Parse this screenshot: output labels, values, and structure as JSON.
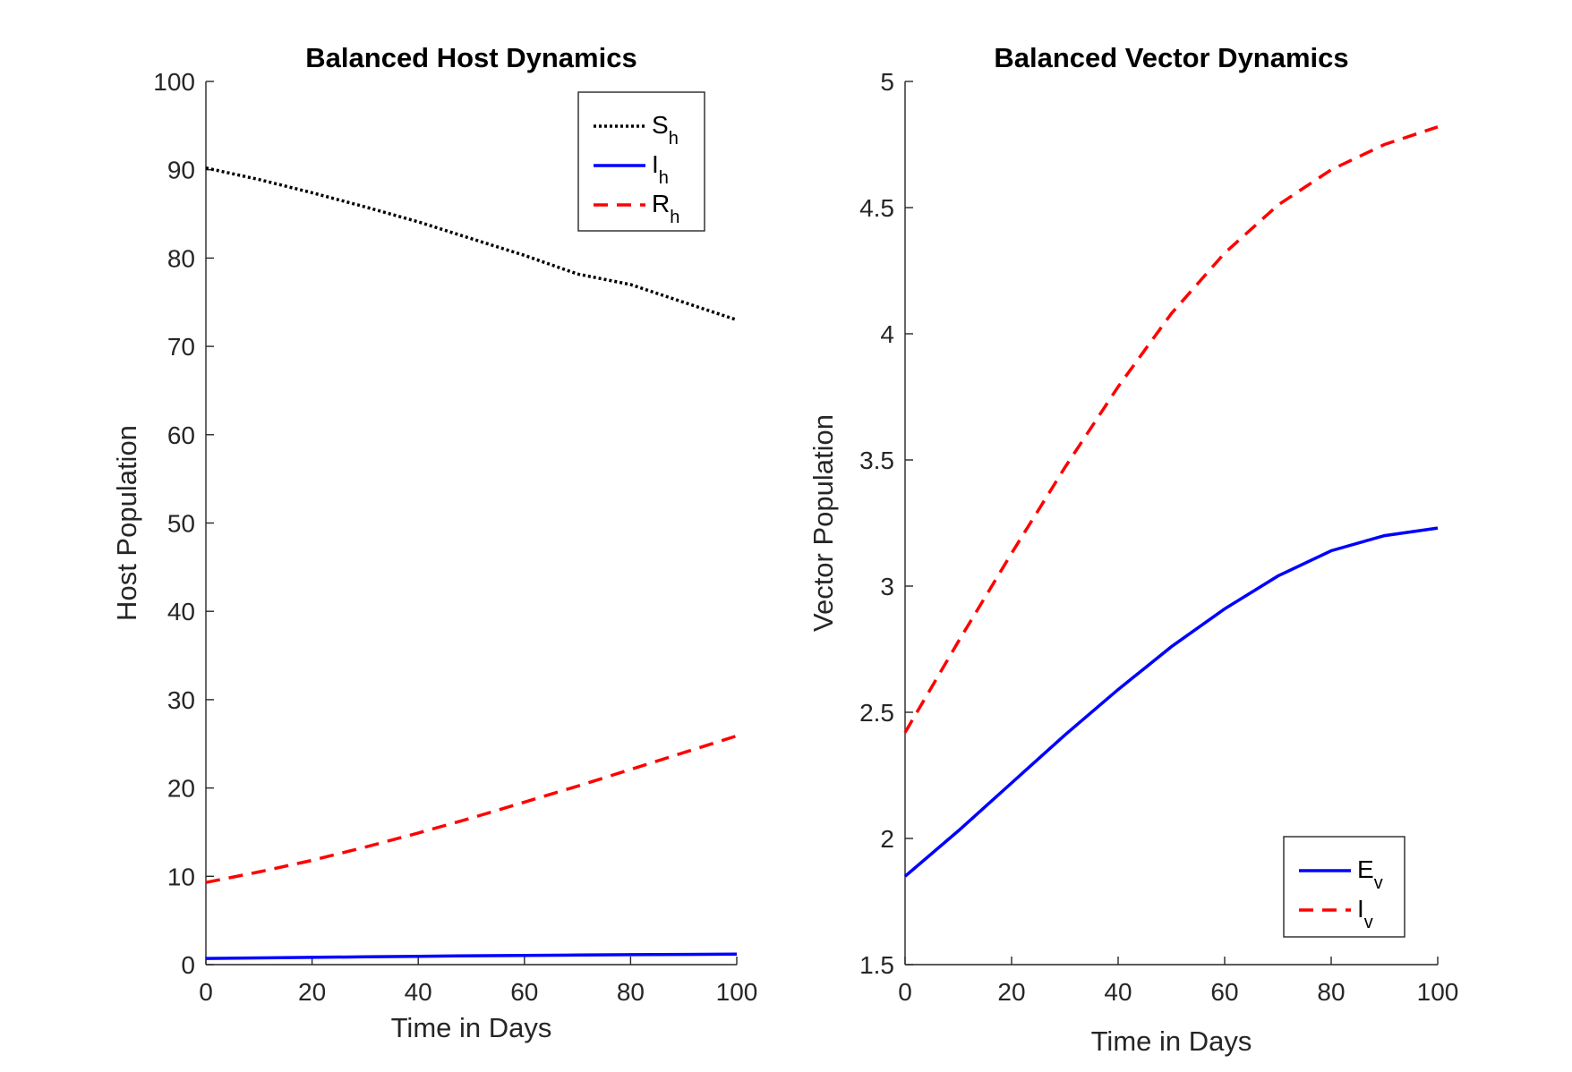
{
  "chart_data": [
    {
      "type": "line",
      "title": "Balanced Host Dynamics",
      "xlabel": "Time in Days",
      "ylabel": "Host Population",
      "xlim": [
        0,
        100
      ],
      "ylim": [
        0,
        100
      ],
      "xticks": [
        0,
        20,
        40,
        60,
        80,
        100
      ],
      "yticks": [
        0,
        10,
        20,
        30,
        40,
        50,
        60,
        70,
        80,
        90,
        100
      ],
      "legend_position": "top-right",
      "x": [
        0,
        10,
        20,
        30,
        40,
        50,
        60,
        70,
        80,
        90,
        100
      ],
      "series": [
        {
          "name": "S",
          "sub": "h",
          "color": "#000000",
          "style": "dotted",
          "values": [
            90.2,
            88.9,
            87.4,
            85.8,
            84.1,
            82.2,
            80.3,
            78.2,
            77.0,
            75.0,
            73.0
          ]
        },
        {
          "name": "I",
          "sub": "h",
          "color": "#0000ff",
          "style": "solid",
          "values": [
            0.7,
            0.76,
            0.82,
            0.88,
            0.94,
            1.0,
            1.04,
            1.08,
            1.12,
            1.16,
            1.2
          ]
        },
        {
          "name": "R",
          "sub": "h",
          "color": "#ff0000",
          "style": "dashed",
          "values": [
            9.3,
            10.5,
            11.8,
            13.3,
            14.9,
            16.6,
            18.4,
            20.2,
            22.1,
            24.0,
            25.9
          ]
        }
      ]
    },
    {
      "type": "line",
      "title": "Balanced Vector Dynamics",
      "xlabel": "Time in Days",
      "ylabel": "Vector Population",
      "xlim": [
        0,
        100
      ],
      "ylim": [
        1.5,
        5
      ],
      "xticks": [
        0,
        20,
        40,
        60,
        80,
        100
      ],
      "yticks": [
        1.5,
        2,
        2.5,
        3,
        3.5,
        4,
        4.5,
        5
      ],
      "legend_position": "bottom-right",
      "x": [
        0,
        10,
        20,
        30,
        40,
        50,
        60,
        70,
        80,
        90,
        100
      ],
      "series": [
        {
          "name": "E",
          "sub": "v",
          "color": "#0000ff",
          "style": "solid",
          "values": [
            1.85,
            2.03,
            2.22,
            2.41,
            2.59,
            2.76,
            2.91,
            3.04,
            3.14,
            3.2,
            3.23
          ]
        },
        {
          "name": "I",
          "sub": "v",
          "color": "#ff0000",
          "style": "dashed",
          "values": [
            2.42,
            2.78,
            3.13,
            3.47,
            3.79,
            4.08,
            4.32,
            4.51,
            4.65,
            4.75,
            4.82
          ]
        }
      ]
    }
  ]
}
